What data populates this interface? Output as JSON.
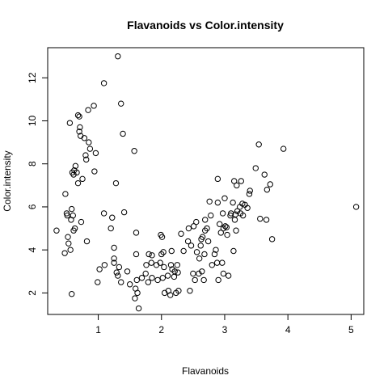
{
  "chart_data": {
    "type": "scatter",
    "title": "Flavanoids vs Color.intensity",
    "xlabel": "Flavanoids",
    "ylabel": "Color.intensity",
    "xlim": [
      0.2,
      5.2
    ],
    "ylim": [
      1.0,
      13.4
    ],
    "x_ticks": [
      1,
      2,
      3,
      4,
      5
    ],
    "y_ticks": [
      2,
      4,
      6,
      8,
      10,
      12
    ],
    "grid": false,
    "legend": "none",
    "marker": "open-circle",
    "points": [
      [
        0.34,
        4.9
      ],
      [
        0.47,
        3.85
      ],
      [
        0.48,
        6.6
      ],
      [
        0.5,
        5.7
      ],
      [
        0.51,
        5.6
      ],
      [
        0.52,
        4.6
      ],
      [
        0.53,
        4.3
      ],
      [
        0.55,
        9.9
      ],
      [
        0.56,
        4.0
      ],
      [
        0.57,
        5.4
      ],
      [
        0.58,
        5.9
      ],
      [
        0.59,
        7.6
      ],
      [
        0.6,
        5.6
      ],
      [
        0.61,
        7.5
      ],
      [
        0.61,
        4.9
      ],
      [
        0.62,
        7.7
      ],
      [
        0.63,
        5.0
      ],
      [
        0.64,
        7.9
      ],
      [
        0.58,
        1.95
      ],
      [
        0.66,
        7.6
      ],
      [
        0.68,
        7.1
      ],
      [
        0.68,
        10.26
      ],
      [
        0.7,
        10.2
      ],
      [
        0.7,
        9.5
      ],
      [
        0.71,
        9.7
      ],
      [
        0.72,
        9.3
      ],
      [
        0.73,
        5.3
      ],
      [
        0.75,
        7.3
      ],
      [
        0.78,
        9.2
      ],
      [
        0.8,
        8.4
      ],
      [
        0.81,
        8.2
      ],
      [
        0.82,
        4.4
      ],
      [
        0.84,
        10.5
      ],
      [
        0.85,
        9.0
      ],
      [
        0.87,
        8.7
      ],
      [
        0.93,
        10.7
      ],
      [
        0.94,
        7.65
      ],
      [
        0.96,
        8.5
      ],
      [
        0.99,
        2.5
      ],
      [
        1.02,
        3.1
      ],
      [
        1.09,
        11.75
      ],
      [
        1.09,
        5.7
      ],
      [
        1.1,
        3.3
      ],
      [
        1.2,
        5.0
      ],
      [
        1.22,
        5.5
      ],
      [
        1.25,
        3.6
      ],
      [
        1.25,
        3.4
      ],
      [
        1.25,
        4.1
      ],
      [
        1.28,
        7.1
      ],
      [
        1.29,
        2.95
      ],
      [
        1.31,
        13.0
      ],
      [
        1.31,
        2.8
      ],
      [
        1.33,
        3.2
      ],
      [
        1.36,
        10.8
      ],
      [
        1.36,
        2.5
      ],
      [
        1.39,
        9.4
      ],
      [
        1.41,
        5.75
      ],
      [
        1.46,
        3.0
      ],
      [
        1.5,
        2.4
      ],
      [
        1.57,
        8.6
      ],
      [
        1.58,
        1.75
      ],
      [
        1.59,
        2.2
      ],
      [
        1.6,
        4.8
      ],
      [
        1.6,
        3.8
      ],
      [
        1.61,
        2.6
      ],
      [
        1.62,
        2.0
      ],
      [
        1.64,
        1.28
      ],
      [
        1.69,
        2.7
      ],
      [
        1.75,
        2.9
      ],
      [
        1.76,
        3.3
      ],
      [
        1.79,
        2.5
      ],
      [
        1.8,
        3.8
      ],
      [
        1.84,
        3.4
      ],
      [
        1.85,
        3.75
      ],
      [
        1.85,
        2.7
      ],
      [
        1.92,
        3.3
      ],
      [
        1.94,
        2.6
      ],
      [
        1.98,
        3.4
      ],
      [
        1.99,
        4.7
      ],
      [
        2.0,
        3.8
      ],
      [
        2.01,
        4.6
      ],
      [
        2.02,
        2.7
      ],
      [
        2.03,
        3.9
      ],
      [
        2.04,
        3.2
      ],
      [
        2.05,
        2.0
      ],
      [
        2.1,
        2.8
      ],
      [
        2.11,
        2.1
      ],
      [
        2.14,
        1.9
      ],
      [
        2.15,
        3.3
      ],
      [
        2.16,
        3.95
      ],
      [
        2.17,
        3.1
      ],
      [
        2.2,
        2.75
      ],
      [
        2.21,
        3.0
      ],
      [
        2.23,
        2.0
      ],
      [
        2.25,
        3.3
      ],
      [
        2.26,
        2.95
      ],
      [
        2.27,
        2.1
      ],
      [
        2.31,
        4.75
      ],
      [
        2.35,
        3.95
      ],
      [
        2.42,
        4.4
      ],
      [
        2.43,
        5.0
      ],
      [
        2.45,
        2.1
      ],
      [
        2.47,
        4.2
      ],
      [
        2.5,
        2.9
      ],
      [
        2.51,
        5.1
      ],
      [
        2.53,
        2.6
      ],
      [
        2.55,
        5.3
      ],
      [
        2.56,
        3.9
      ],
      [
        2.59,
        2.9
      ],
      [
        2.6,
        3.6
      ],
      [
        2.62,
        4.2
      ],
      [
        2.63,
        4.5
      ],
      [
        2.64,
        3.0
      ],
      [
        2.65,
        4.6
      ],
      [
        2.67,
        2.6
      ],
      [
        2.68,
        3.8
      ],
      [
        2.69,
        4.9
      ],
      [
        2.69,
        5.4
      ],
      [
        2.72,
        5.0
      ],
      [
        2.74,
        4.4
      ],
      [
        2.76,
        6.25
      ],
      [
        2.78,
        5.6
      ],
      [
        2.8,
        3.3
      ],
      [
        2.84,
        3.8
      ],
      [
        2.86,
        4.0
      ],
      [
        2.88,
        3.4
      ],
      [
        2.89,
        6.2
      ],
      [
        2.89,
        7.3
      ],
      [
        2.9,
        2.6
      ],
      [
        2.92,
        5.2
      ],
      [
        2.94,
        4.8
      ],
      [
        2.96,
        3.4
      ],
      [
        2.97,
        5.7
      ],
      [
        2.98,
        2.9
      ],
      [
        2.98,
        5.0
      ],
      [
        3.0,
        6.4
      ],
      [
        3.01,
        5.1
      ],
      [
        3.03,
        5.05
      ],
      [
        3.04,
        4.7
      ],
      [
        3.06,
        2.8
      ],
      [
        3.09,
        5.6
      ],
      [
        3.1,
        5.7
      ],
      [
        3.13,
        6.2
      ],
      [
        3.14,
        3.95
      ],
      [
        3.15,
        7.2
      ],
      [
        3.16,
        5.4
      ],
      [
        3.17,
        5.65
      ],
      [
        3.18,
        4.9
      ],
      [
        3.19,
        7.0
      ],
      [
        3.2,
        5.8
      ],
      [
        3.24,
        6.0
      ],
      [
        3.25,
        5.7
      ],
      [
        3.26,
        7.2
      ],
      [
        3.28,
        6.15
      ],
      [
        3.29,
        5.6
      ],
      [
        3.32,
        6.1
      ],
      [
        3.36,
        5.95
      ],
      [
        3.39,
        6.6
      ],
      [
        3.4,
        6.75
      ],
      [
        3.49,
        7.8
      ],
      [
        3.54,
        8.9
      ],
      [
        3.56,
        5.45
      ],
      [
        3.63,
        7.5
      ],
      [
        3.66,
        5.4
      ],
      [
        3.67,
        6.8
      ],
      [
        3.72,
        7.05
      ],
      [
        3.75,
        4.5
      ],
      [
        3.93,
        8.7
      ],
      [
        5.08,
        6.0
      ]
    ]
  }
}
